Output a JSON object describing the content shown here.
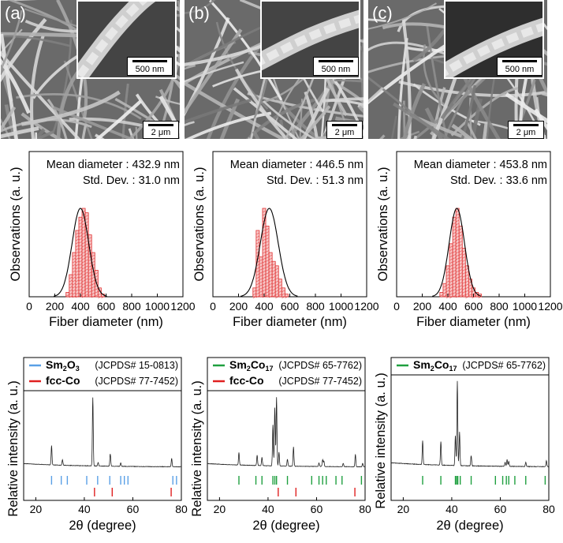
{
  "sem_panels": [
    {
      "label": "(a)",
      "inset_scale": "500 nm",
      "main_scale": "2 μm"
    },
    {
      "label": "(b)",
      "inset_scale": "500 nm",
      "main_scale": "2 μm"
    },
    {
      "label": "(c)",
      "inset_scale": "500 nm",
      "main_scale": "2 μm"
    }
  ],
  "histograms": {
    "xlabel": "Fiber diameter (nm)",
    "ylabel": "Observations (a. u.)",
    "ticks": [
      "0",
      "200",
      "400",
      "600",
      "800",
      "1000",
      "1200"
    ],
    "panels": [
      {
        "mean_text": "Mean diameter : 432.9 nm",
        "std_text": "Std. Dev. : 31.0 nm"
      },
      {
        "mean_text": "Mean diameter : 446.5 nm",
        "std_text": "Std. Dev. : 51.3 nm"
      },
      {
        "mean_text": "Mean diameter : 453.8 nm",
        "std_text": "Std. Dev. : 33.6 nm"
      }
    ]
  },
  "xrd": {
    "xlabel": "2θ (degree)",
    "ylabel": "Relative intensity (a. u.)",
    "ticks": [
      "20",
      "40",
      "60",
      "80"
    ],
    "panels": [
      {
        "legend": [
          {
            "formula": "Sm",
            "sub1": "2",
            "mid": "O",
            "sub2": "3",
            "ref": "(JCPDS# 15-0813)",
            "color": "#5aa0e6"
          },
          {
            "formula": "fcc-Co",
            "sub1": "",
            "mid": "",
            "sub2": "",
            "ref": "(JCPDS# 77-7452)",
            "color": "#e02020"
          }
        ]
      },
      {
        "legend": [
          {
            "formula": "Sm",
            "sub1": "2",
            "mid": "Co",
            "sub2": "17",
            "ref": "(JCPDS# 65-7762)",
            "color": "#20a040"
          },
          {
            "formula": "fcc-Co",
            "sub1": "",
            "mid": "",
            "sub2": "",
            "ref": "(JCPDS# 77-7452)",
            "color": "#e02020"
          }
        ]
      },
      {
        "legend": [
          {
            "formula": "Sm",
            "sub1": "2",
            "mid": "Co",
            "sub2": "17",
            "ref": "(JCPDS# 65-7762)",
            "color": "#20a040"
          }
        ]
      }
    ]
  },
  "chart_data": [
    {
      "type": "bar",
      "x": [
        300,
        325,
        350,
        375,
        400,
        425,
        450,
        475,
        500,
        525,
        550,
        575
      ],
      "values": [
        0.05,
        0.25,
        0.5,
        0.75,
        0.9,
        1.0,
        0.95,
        0.7,
        0.5,
        0.3,
        0.1,
        0.03
      ],
      "fit_mean": 400,
      "fit_sd": 65,
      "xlim": [
        0,
        1200
      ],
      "xlabel": "Fiber diameter (nm)",
      "ylabel": "Observations (a. u.)"
    },
    {
      "type": "bar",
      "x": [
        325,
        350,
        375,
        400,
        425,
        450,
        475,
        500,
        525,
        550,
        575
      ],
      "values": [
        0.1,
        0.75,
        0.45,
        1.0,
        0.8,
        0.5,
        0.4,
        0.35,
        0.2,
        0.1,
        0.03
      ],
      "fit_mean": 440,
      "fit_sd": 70,
      "xlim": [
        0,
        1200
      ],
      "xlabel": "Fiber diameter (nm)",
      "ylabel": "Observations (a. u.)"
    },
    {
      "type": "bar",
      "x": [
        350,
        375,
        400,
        425,
        450,
        475,
        500,
        525,
        550,
        575,
        600,
        625,
        650
      ],
      "values": [
        0.05,
        0.15,
        0.35,
        0.6,
        0.9,
        1.0,
        0.8,
        0.55,
        0.35,
        0.2,
        0.1,
        0.05,
        0.03
      ],
      "fit_mean": 470,
      "fit_sd": 60,
      "xlim": [
        0,
        1200
      ],
      "xlabel": "Fiber diameter (nm)",
      "ylabel": "Observations (a. u.)"
    },
    {
      "type": "line",
      "xlim": [
        15,
        80
      ],
      "xlabel": "2θ (degree)",
      "ylabel": "Relative intensity (a. u.)",
      "peaks": [
        [
          26.5,
          0.28
        ],
        [
          31,
          0.08
        ],
        [
          43.5,
          1.0
        ],
        [
          45.7,
          0.05
        ],
        [
          50.7,
          0.18
        ],
        [
          55,
          0.05
        ],
        [
          76,
          0.12
        ]
      ],
      "refs": [
        {
          "color": "#5aa0e6",
          "positions": [
            26.5,
            30.5,
            33,
            41,
            45.5,
            50.5,
            55,
            56.5,
            58,
            76.5,
            78
          ]
        },
        {
          "color": "#e02020",
          "positions": [
            44.2,
            51.5,
            75.8
          ]
        }
      ]
    },
    {
      "type": "line",
      "xlim": [
        15,
        80
      ],
      "xlabel": "2θ (degree)",
      "ylabel": "Relative intensity (a. u.)",
      "peaks": [
        [
          28,
          0.18
        ],
        [
          35.5,
          0.15
        ],
        [
          37.5,
          0.12
        ],
        [
          42,
          0.6
        ],
        [
          42.8,
          0.85
        ],
        [
          43.5,
          1.0
        ],
        [
          44.5,
          0.2
        ],
        [
          48,
          0.1
        ],
        [
          50.5,
          0.28
        ],
        [
          61,
          0.05
        ],
        [
          62.5,
          0.1
        ],
        [
          63,
          0.08
        ],
        [
          71,
          0.05
        ],
        [
          76,
          0.18
        ],
        [
          79,
          0.05
        ]
      ],
      "refs": [
        {
          "color": "#20a040",
          "positions": [
            28,
            35,
            37.5,
            42,
            42.8,
            43.5,
            48,
            58,
            61,
            62.5,
            64,
            68,
            70.5,
            78.5
          ]
        },
        {
          "color": "#e02020",
          "positions": [
            44.2,
            51.5,
            75.8
          ]
        }
      ]
    },
    {
      "type": "line",
      "xlim": [
        15,
        80
      ],
      "xlabel": "2θ (degree)",
      "ylabel": "Relative intensity (a. u.)",
      "peaks": [
        [
          28,
          0.28
        ],
        [
          35.5,
          0.28
        ],
        [
          41.5,
          0.35
        ],
        [
          42.3,
          1.0
        ],
        [
          43.2,
          0.4
        ],
        [
          48,
          0.12
        ],
        [
          62,
          0.05
        ],
        [
          62.8,
          0.08
        ],
        [
          63.5,
          0.06
        ],
        [
          70.5,
          0.05
        ],
        [
          79,
          0.07
        ]
      ],
      "refs": [
        {
          "color": "#20a040",
          "positions": [
            28,
            35.5,
            41.5,
            42,
            42.5,
            43.5,
            48,
            58,
            61,
            62.5,
            63.5,
            66,
            70.5,
            78.5
          ]
        }
      ]
    }
  ]
}
